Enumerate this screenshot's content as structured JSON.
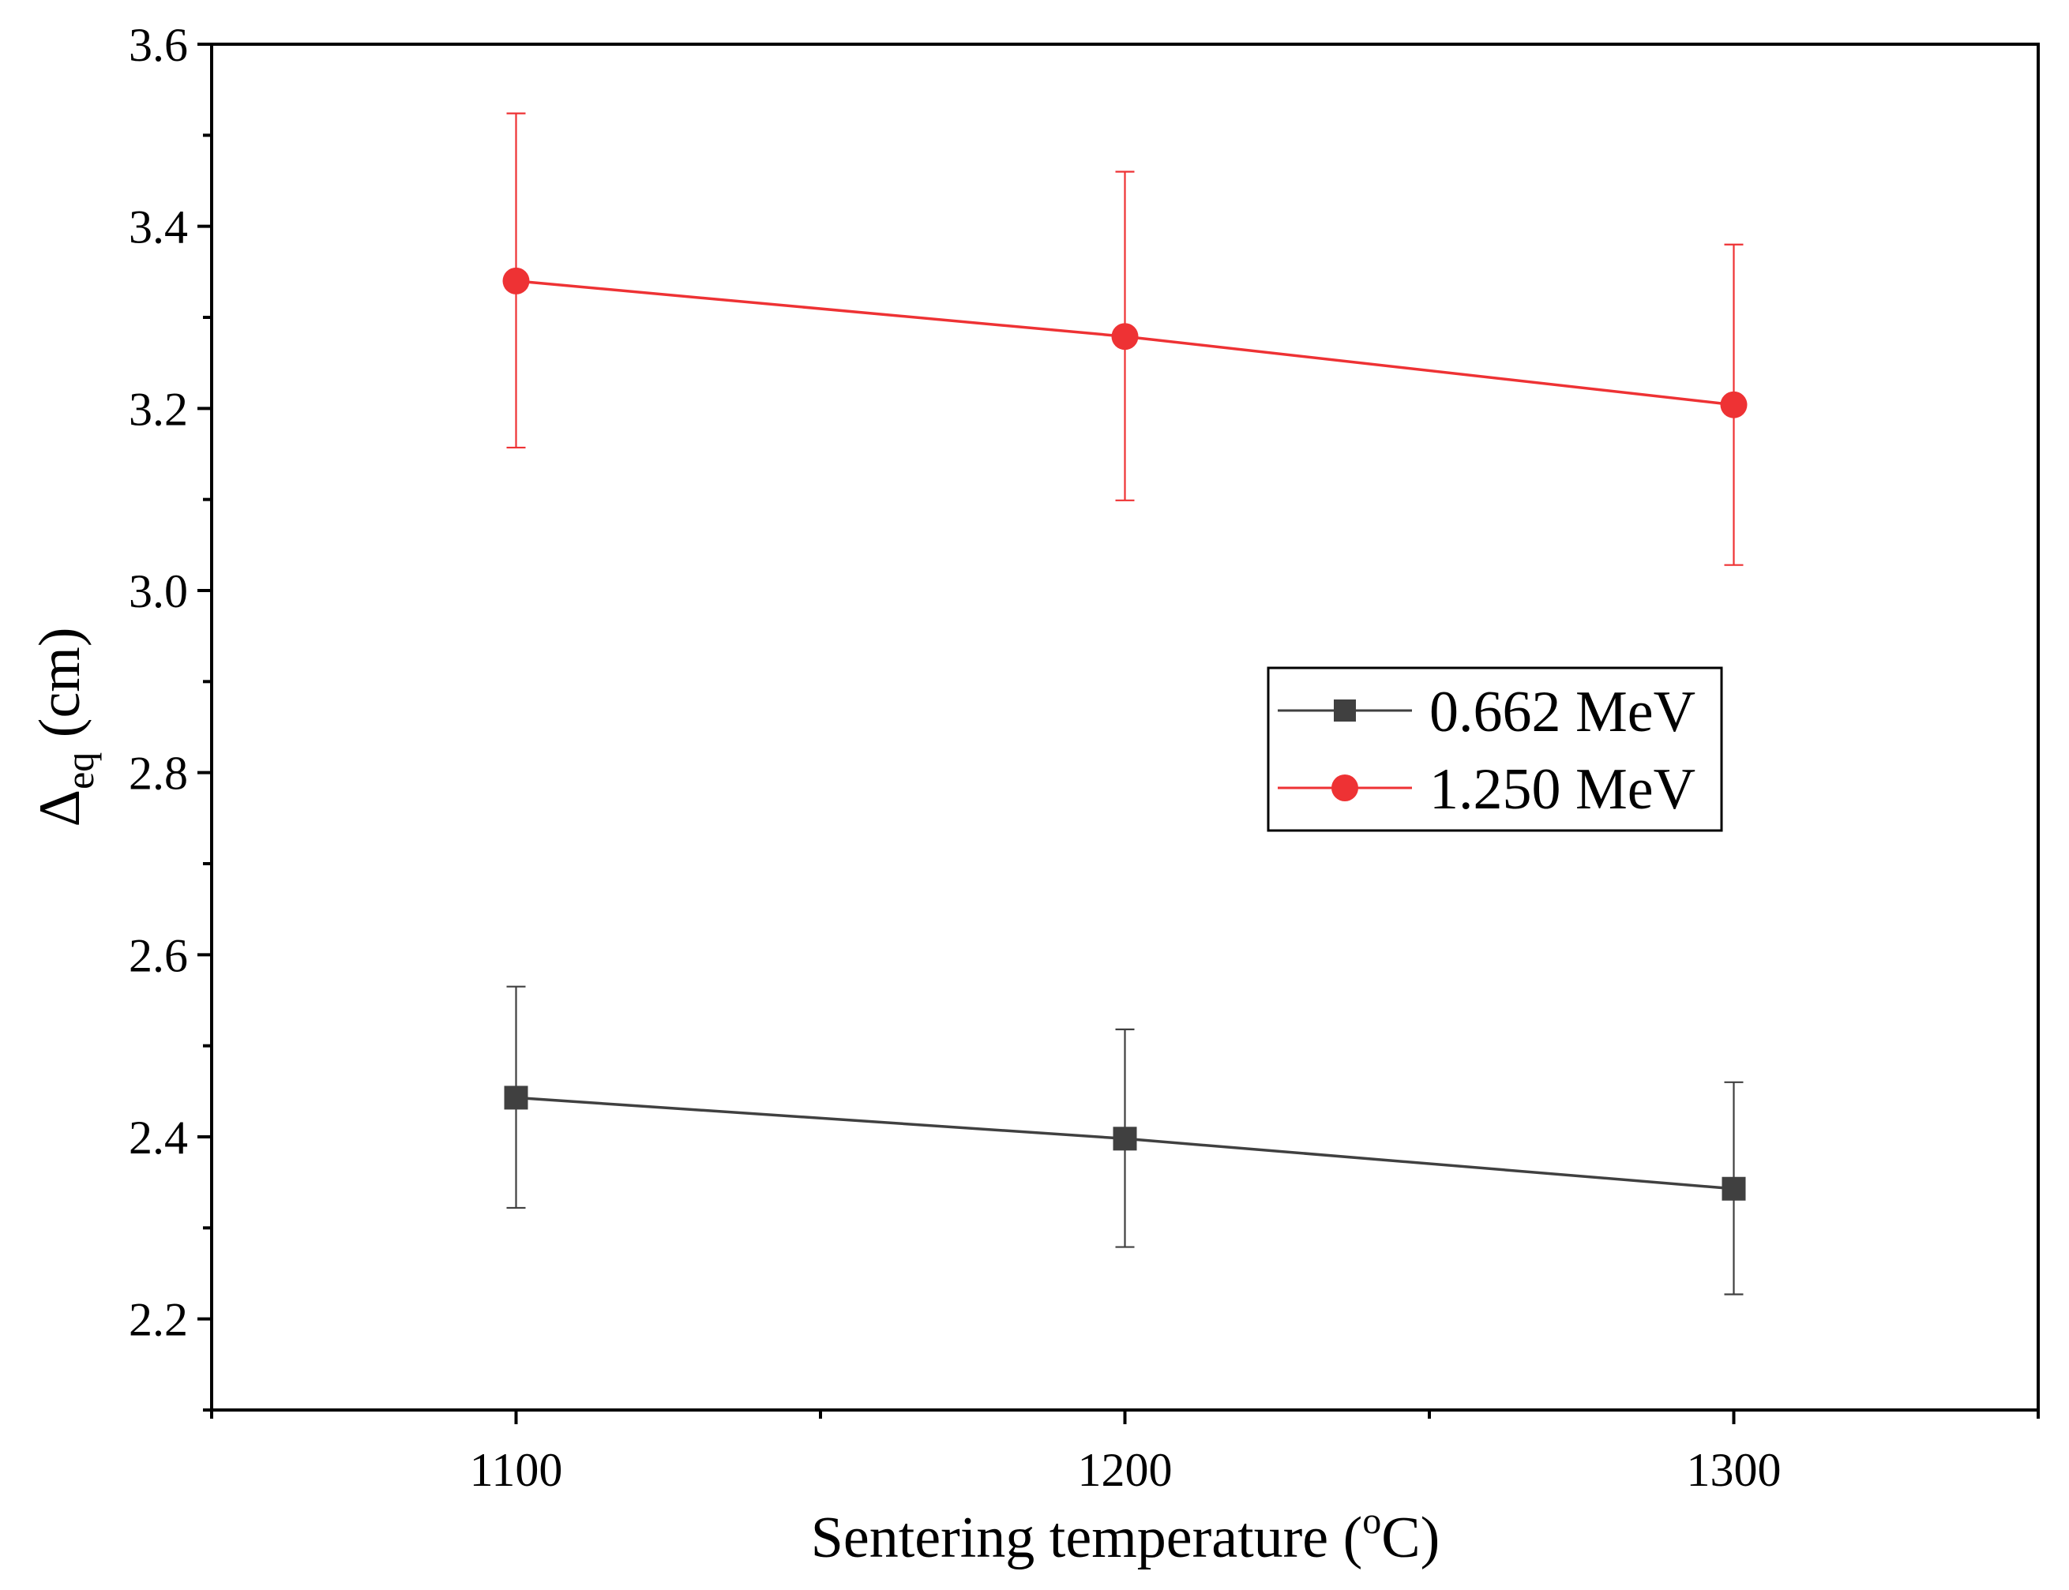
{
  "chart_data": {
    "type": "line",
    "title": "",
    "xlabel": "Sentering temperature (",
    "xlabel_sup": "o",
    "xlabel_tail": "C)",
    "ylabel": "Δ",
    "ylabel_sub": "eq",
    "ylabel_tail": " (cm)",
    "xlim": [
      1050,
      1350
    ],
    "ylim": [
      2.1,
      3.6
    ],
    "x_ticks": [
      1100,
      1200,
      1300
    ],
    "x_tick_labels": [
      "1100",
      "1200",
      "1300"
    ],
    "y_ticks": [
      2.2,
      2.4,
      2.6,
      2.8,
      3.0,
      3.2,
      3.4,
      3.6
    ],
    "y_tick_labels": [
      "2.2",
      "2.4",
      "2.6",
      "2.8",
      "3.0",
      "3.2",
      "3.4",
      "3.6"
    ],
    "legend_position": "center-right",
    "series": [
      {
        "name": "0.662 MeV",
        "marker": "square",
        "color": "#404040",
        "x": [
          1100,
          1200,
          1300
        ],
        "y": [
          2.443,
          2.398,
          2.343
        ],
        "err_low": [
          2.322,
          2.279,
          2.227
        ],
        "err_high": [
          2.565,
          2.518,
          2.46
        ]
      },
      {
        "name": "1.250 MeV",
        "marker": "circle",
        "color": "#ee3234",
        "x": [
          1100,
          1200,
          1300
        ],
        "y": [
          3.34,
          3.279,
          3.204
        ],
        "err_low": [
          3.157,
          3.099,
          3.028
        ],
        "err_high": [
          3.524,
          3.46,
          3.38
        ]
      }
    ]
  }
}
